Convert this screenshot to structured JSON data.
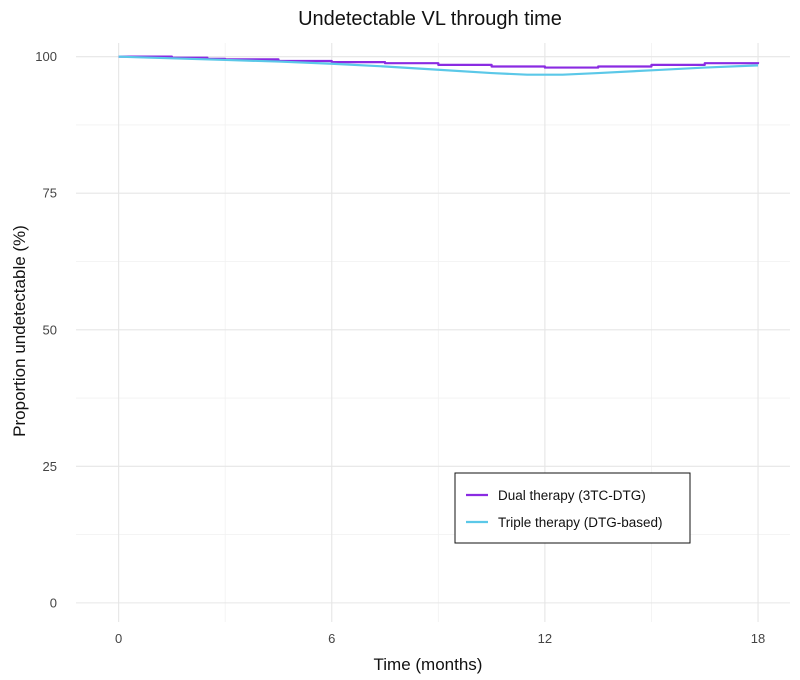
{
  "chart_data": {
    "type": "line",
    "title": "Undetectable VL through time",
    "xlabel": "Time (months)",
    "ylabel": "Proportion undetectable (%)",
    "xlim": [
      -1.2,
      18.9
    ],
    "ylim": [
      -3.5,
      102.5
    ],
    "x_ticks": [
      0,
      6,
      12,
      18
    ],
    "y_ticks": [
      0,
      25,
      50,
      75,
      100
    ],
    "grid": true,
    "legend_position": "bottom-right",
    "series": [
      {
        "name": "Dual therapy (3TC-DTG)",
        "color": "#8a2be2",
        "x": [
          0,
          1.3,
          1.5,
          2.5,
          3,
          4.5,
          6,
          7.5,
          9,
          10.5,
          12,
          13.5,
          15,
          16.5,
          18
        ],
        "y": [
          100,
          100,
          99.8,
          99.6,
          99.5,
          99.2,
          99.0,
          98.8,
          98.5,
          98.2,
          98.0,
          98.2,
          98.5,
          98.8,
          99.0
        ],
        "step": true
      },
      {
        "name": "Triple therapy (DTG-based)",
        "color": "#5bc8e8",
        "x": [
          0,
          1.5,
          3,
          4.5,
          6,
          7.5,
          9,
          10.5,
          11.5,
          12.5,
          13.5,
          15,
          16.5,
          18
        ],
        "y": [
          100,
          99.7,
          99.4,
          99.1,
          98.7,
          98.2,
          97.6,
          97.0,
          96.7,
          96.7,
          97.0,
          97.5,
          98.0,
          98.4
        ],
        "step": false
      }
    ]
  }
}
